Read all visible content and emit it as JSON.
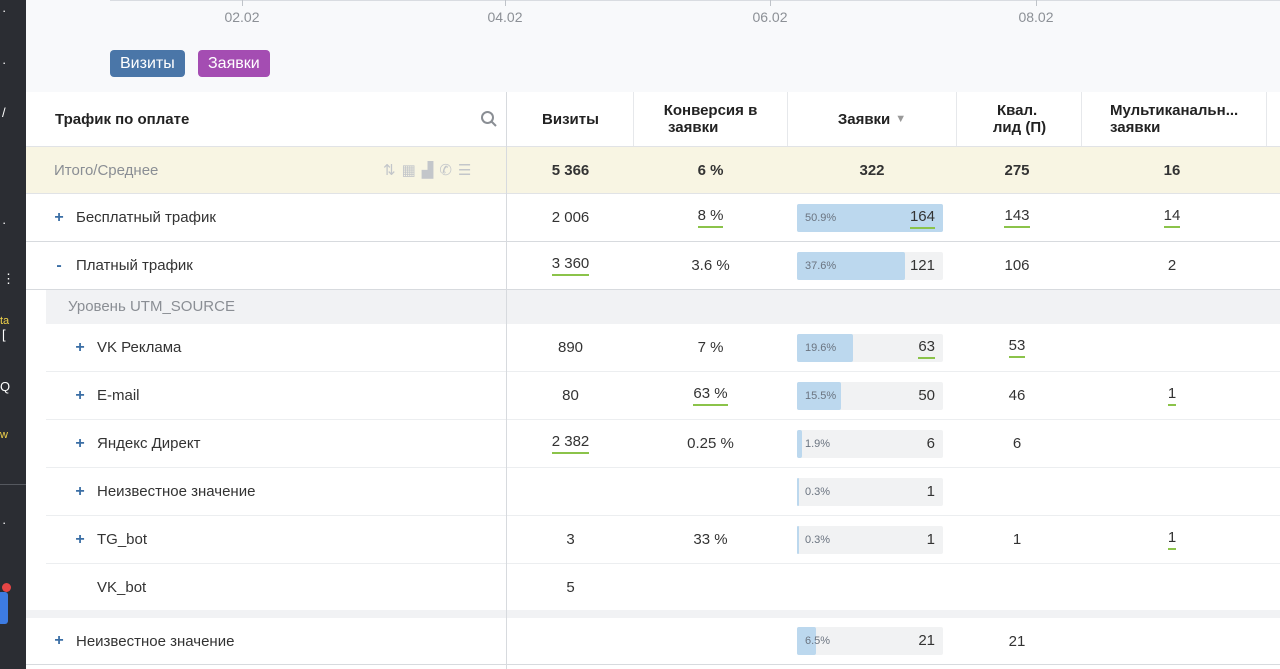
{
  "chart": {
    "ticks": [
      "02.02",
      "04.02",
      "06.02",
      "08.02"
    ],
    "legend": [
      {
        "label": "Визиты",
        "color": "#4a76a8"
      },
      {
        "label": "Заявки",
        "color": "#a44db2"
      }
    ]
  },
  "sidebar_glyphs": [
    "·",
    "·",
    "/",
    "·",
    "⋮",
    "ta",
    "[",
    "Q",
    "w",
    "·"
  ],
  "table": {
    "headers": {
      "name": "Трафик по оплате",
      "visits": "Визиты",
      "conversion_l1": "Конверсия в",
      "conversion_l2": "заявки",
      "leads": "Заявки",
      "qual_l1": "Квал.",
      "qual_l2": "лид (П)",
      "multi_l1": "Мультиканальн...",
      "multi_l2": "заявки"
    },
    "total": {
      "label": "Итого/Среднее",
      "visits": "5 366",
      "conversion": "6 %",
      "leads": "322",
      "qual": "275",
      "multi": "16"
    },
    "rows": [
      {
        "toggle": "+",
        "label": "Бесплатный трафик",
        "visits": "2 006",
        "conversion": "8 %",
        "pct": "50.9%",
        "pct_value": 50.9,
        "leads": "164",
        "qual": "143",
        "multi": "14"
      },
      {
        "toggle": "-",
        "label": "Платный трафик",
        "visits": "3 360",
        "conversion": "3.6 %",
        "pct": "37.6%",
        "pct_value": 37.6,
        "leads": "121",
        "qual": "106",
        "multi": "2"
      }
    ],
    "level_label": "Уровень UTM_SOURCE",
    "subrows": [
      {
        "toggle": "+",
        "label": "VK Реклама",
        "visits": "890",
        "conversion": "7 %",
        "pct": "19.6%",
        "pct_value": 19.6,
        "leads": "63",
        "qual": "53",
        "multi": ""
      },
      {
        "toggle": "+",
        "label": "E-mail",
        "visits": "80",
        "conversion": "63 %",
        "pct": "15.5%",
        "pct_value": 15.5,
        "leads": "50",
        "qual": "46",
        "multi": "1"
      },
      {
        "toggle": "+",
        "label": "Яндекс Директ",
        "visits": "2 382",
        "conversion": "0.25 %",
        "pct": "1.9%",
        "pct_value": 1.9,
        "leads": "6",
        "qual": "6",
        "multi": ""
      },
      {
        "toggle": "+",
        "label": "Неизвестное значение",
        "visits": "",
        "conversion": "",
        "pct": "0.3%",
        "pct_value": 0.3,
        "leads": "1",
        "qual": "",
        "multi": ""
      },
      {
        "toggle": "+",
        "label": "TG_bot",
        "visits": "3",
        "conversion": "33 %",
        "pct": "0.3%",
        "pct_value": 0.3,
        "leads": "1",
        "qual": "1",
        "multi": "1"
      },
      {
        "toggle": "",
        "label": "VK_bot",
        "visits": "5",
        "conversion": "",
        "pct": "",
        "pct_value": 0,
        "leads": "",
        "qual": "",
        "multi": ""
      }
    ],
    "bottom_row": {
      "toggle": "+",
      "label": "Неизвестное значение",
      "visits": "",
      "conversion": "",
      "pct": "6.5%",
      "pct_value": 6.5,
      "leads": "21",
      "qual": "21",
      "multi": ""
    }
  }
}
